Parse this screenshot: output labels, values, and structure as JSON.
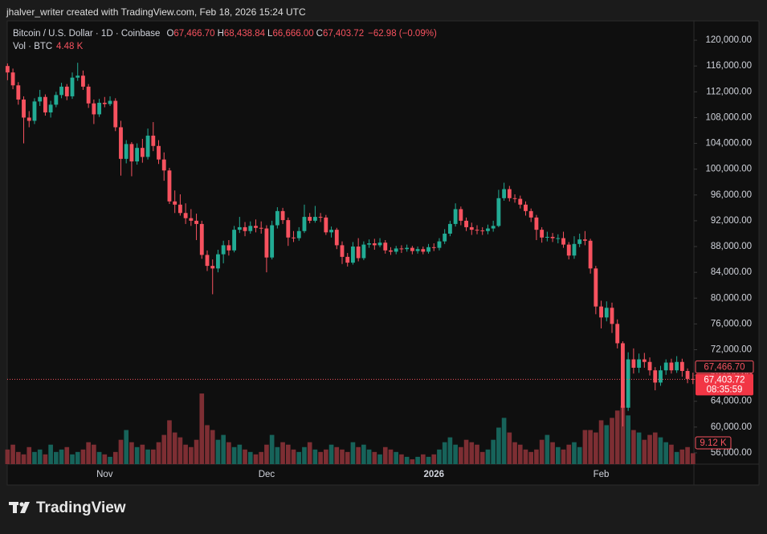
{
  "header": {
    "credit": "jhalver_writer created with TradingView.com, Feb 18, 2026 15:24 UTC",
    "symbol": "Bitcoin / U.S. Dollar · 1D · Coinbase",
    "ohlc": [
      {
        "key": "O",
        "value": "67,466.70"
      },
      {
        "key": "H",
        "value": "68,438.84"
      },
      {
        "key": "L",
        "value": "66,666.00"
      },
      {
        "key": "C",
        "value": "67,403.72"
      }
    ],
    "change": "−62.98 (−0.09%)",
    "vol_title": "Vol · BTC",
    "vol_value": "4.48 K"
  },
  "chart_data": {
    "type": "candlestick",
    "categories": [
      null,
      null,
      null,
      null,
      null,
      null,
      null,
      null,
      null,
      null,
      null,
      null,
      null,
      null,
      null,
      null,
      null,
      null,
      "Nov",
      null,
      null,
      null,
      null,
      null,
      null,
      null,
      null,
      null,
      null,
      null,
      null,
      null,
      null,
      null,
      null,
      null,
      null,
      null,
      null,
      null,
      null,
      null,
      null,
      null,
      null,
      null,
      null,
      null,
      "Dec",
      null,
      null,
      null,
      null,
      null,
      null,
      null,
      null,
      null,
      null,
      null,
      null,
      null,
      null,
      null,
      null,
      null,
      null,
      null,
      null,
      null,
      null,
      null,
      null,
      null,
      null,
      null,
      null,
      null,
      null,
      "2026",
      null,
      null,
      null,
      null,
      null,
      null,
      null,
      null,
      null,
      null,
      null,
      null,
      null,
      null,
      null,
      null,
      null,
      null,
      null,
      null,
      null,
      null,
      null,
      null,
      null,
      null,
      null,
      null,
      null,
      null,
      "Feb",
      null,
      null,
      null,
      null,
      null,
      null,
      null,
      null,
      null,
      null,
      null,
      null,
      null,
      null,
      null,
      null,
      null
    ],
    "open": [
      116000,
      115000,
      113000,
      110800,
      108000,
      107500,
      110500,
      111200,
      108800,
      110000,
      111500,
      112800,
      111300,
      114200,
      114500,
      112800,
      110200,
      108500,
      110300,
      110100,
      110600,
      106500,
      101600,
      103900,
      101200,
      103300,
      101900,
      105200,
      103600,
      101500,
      99800,
      95000,
      94500,
      93200,
      92400,
      92000,
      91500,
      86700,
      85000,
      84600,
      86800,
      88200,
      87400,
      90600,
      91000,
      90400,
      91200,
      90900,
      90800,
      86300,
      91300,
      93500,
      92100,
      89400,
      89300,
      90400,
      92600,
      92000,
      92600,
      92500,
      90200,
      90600,
      88200,
      86400,
      85500,
      88000,
      86200,
      88300,
      88500,
      88200,
      88600,
      87400,
      87200,
      87700,
      87600,
      87800,
      87300,
      87600,
      87200,
      87900,
      87800,
      88800,
      90000,
      91500,
      93800,
      92000,
      91000,
      90600,
      90500,
      90400,
      90800,
      91200,
      95500,
      96900,
      95500,
      95400,
      94500,
      93500,
      92500,
      90600,
      89400,
      89500,
      89300,
      89300,
      88300,
      86600,
      88400,
      89100,
      88900,
      84600,
      78700,
      77000,
      78500,
      76000,
      73000,
      63000,
      70500,
      69200,
      70500,
      70100,
      68800,
      66900,
      68800,
      70000,
      68800,
      70100,
      68700,
      67466.7
    ],
    "high": [
      116400,
      115600,
      113500,
      111300,
      109000,
      111000,
      112300,
      111600,
      110600,
      112000,
      113400,
      113200,
      115000,
      116500,
      115300,
      113200,
      110800,
      110900,
      111200,
      111300,
      111000,
      107500,
      104500,
      104200,
      104000,
      104700,
      106300,
      107300,
      104500,
      102600,
      100200,
      96700,
      96100,
      94700,
      93800,
      93100,
      92000,
      87400,
      86000,
      87500,
      88900,
      89000,
      91200,
      92600,
      91800,
      91900,
      92200,
      91900,
      91300,
      92000,
      94100,
      94000,
      92500,
      90400,
      91000,
      94500,
      93200,
      94300,
      93200,
      92900,
      91100,
      90900,
      88800,
      87000,
      88700,
      89300,
      88800,
      89100,
      89200,
      89300,
      89000,
      87900,
      88100,
      88200,
      88300,
      88100,
      88000,
      88000,
      88400,
      88500,
      89300,
      90700,
      92000,
      94700,
      94200,
      92500,
      91700,
      91300,
      91000,
      91400,
      92000,
      96800,
      97900,
      97400,
      96100,
      95900,
      95000,
      93900,
      92900,
      91000,
      90300,
      90100,
      89900,
      90300,
      88700,
      89600,
      90000,
      90400,
      89200,
      85000,
      79600,
      79500,
      79300,
      76700,
      73300,
      71600,
      72200,
      71400,
      71500,
      70800,
      69300,
      69500,
      70500,
      70600,
      71000,
      70600,
      69100,
      68438.84
    ],
    "low": [
      113800,
      112400,
      110000,
      104000,
      106500,
      107000,
      109800,
      108300,
      108000,
      109600,
      111000,
      110700,
      110900,
      113700,
      112300,
      109500,
      107000,
      108100,
      109600,
      109800,
      105900,
      99000,
      100900,
      98900,
      100700,
      101000,
      101500,
      102800,
      100800,
      98200,
      94600,
      93200,
      92800,
      91500,
      91200,
      89000,
      86100,
      84200,
      80600,
      84000,
      85400,
      86600,
      87100,
      90100,
      89600,
      90000,
      90200,
      90000,
      84000,
      86000,
      90800,
      91500,
      88100,
      88700,
      88900,
      90100,
      91600,
      91700,
      91800,
      89800,
      89400,
      87600,
      85300,
      84900,
      85200,
      85700,
      85900,
      87800,
      87500,
      87900,
      86900,
      86700,
      86800,
      87000,
      87200,
      86800,
      86900,
      86800,
      86900,
      87300,
      87400,
      88400,
      89600,
      91100,
      91300,
      90400,
      89800,
      89900,
      89800,
      89900,
      90300,
      91000,
      95100,
      95000,
      94800,
      93900,
      92800,
      91800,
      89000,
      88600,
      88800,
      88700,
      88500,
      87800,
      86000,
      86100,
      87900,
      88200,
      83800,
      77500,
      75300,
      76400,
      74600,
      72200,
      60100,
      62500,
      68300,
      68400,
      69200,
      68000,
      65700,
      66400,
      68100,
      68300,
      68400,
      67800,
      66800,
      66666
    ],
    "close": [
      115000,
      113000,
      110800,
      108000,
      107500,
      110500,
      111200,
      108800,
      110000,
      111500,
      112800,
      111300,
      114200,
      114500,
      112800,
      110200,
      108500,
      110300,
      110100,
      110600,
      106500,
      101600,
      103900,
      101200,
      103300,
      101900,
      105200,
      103600,
      101500,
      99800,
      95000,
      94500,
      93200,
      92400,
      92000,
      91500,
      86700,
      85000,
      84600,
      86800,
      88200,
      87400,
      90600,
      91000,
      90400,
      91200,
      90900,
      90800,
      86300,
      91300,
      93500,
      92100,
      89400,
      89300,
      90400,
      92600,
      92000,
      92600,
      92500,
      90200,
      90600,
      88200,
      86400,
      85500,
      88000,
      86200,
      88300,
      88500,
      88200,
      88600,
      87400,
      87200,
      87700,
      87600,
      87800,
      87300,
      87600,
      87200,
      87900,
      87800,
      88800,
      90000,
      91500,
      93800,
      92000,
      91000,
      90600,
      90500,
      90400,
      90800,
      91200,
      95500,
      96900,
      95500,
      95400,
      94500,
      93500,
      92500,
      90600,
      89400,
      89500,
      89300,
      89300,
      88300,
      86600,
      88400,
      89100,
      88900,
      84600,
      78700,
      77000,
      78500,
      76000,
      73000,
      63000,
      70500,
      69200,
      70500,
      70100,
      68800,
      66900,
      68800,
      70000,
      68800,
      70100,
      68700,
      67466.7,
      67403.72
    ],
    "volume": [
      6,
      8,
      5,
      4,
      7,
      5,
      6,
      4,
      8,
      5,
      6,
      7,
      4,
      5,
      6,
      9,
      8,
      5,
      4,
      3,
      5,
      10,
      14,
      9,
      7,
      8,
      6,
      6,
      9,
      12,
      18,
      13,
      11,
      8,
      7,
      10,
      29,
      16,
      14,
      10,
      12,
      9,
      7,
      8,
      6,
      5,
      4,
      5,
      8,
      12,
      7,
      9,
      8,
      6,
      5,
      7,
      9,
      6,
      5,
      6,
      8,
      7,
      6,
      5,
      9,
      7,
      8,
      6,
      5,
      4,
      7,
      6,
      5,
      4,
      3,
      2,
      3,
      4,
      3,
      4,
      6,
      9,
      11,
      8,
      7,
      10,
      9,
      8,
      5,
      6,
      10,
      15,
      19,
      13,
      9,
      8,
      6,
      5,
      6,
      10,
      12,
      9,
      7,
      6,
      8,
      9,
      7,
      14,
      14,
      13,
      18,
      16,
      19,
      22,
      24,
      20,
      14,
      13,
      10,
      12,
      13,
      11,
      9,
      8,
      5,
      6,
      7,
      4.48
    ],
    "up_color": "#22ab94",
    "down_color": "#f7525f",
    "vol_up_color": "#17635a",
    "vol_down_color": "#7d2e33",
    "ylim": [
      54250,
      123000
    ],
    "yticks": [
      {
        "value": 56000,
        "label": "56,000.00"
      },
      {
        "value": 60000,
        "label": "60,000.00"
      },
      {
        "value": 64000,
        "label": "64,000.00"
      },
      {
        "value": 68000,
        "label": "68,000.00"
      },
      {
        "value": 72000,
        "label": "72,000.00"
      },
      {
        "value": 76000,
        "label": "76,000.00"
      },
      {
        "value": 80000,
        "label": "80,000.00"
      },
      {
        "value": 84000,
        "label": "84,000.00"
      },
      {
        "value": 88000,
        "label": "88,000.00"
      },
      {
        "value": 92000,
        "label": "92,000.00"
      },
      {
        "value": 96000,
        "label": "96,000.00"
      },
      {
        "value": 100000,
        "label": "100,000.00"
      },
      {
        "value": 104000,
        "label": "104,000.00"
      },
      {
        "value": 108000,
        "label": "108,000.00"
      },
      {
        "value": 112000,
        "label": "112,000.00"
      },
      {
        "value": 116000,
        "label": "116,000.00"
      },
      {
        "value": 120000,
        "label": "120,000.00"
      }
    ],
    "vlim": [
      0,
      30
    ],
    "last_price_line": true
  },
  "price_labels": {
    "prev": "67,466.70",
    "last": "67,403.72",
    "countdown": "08:35:59",
    "volume": "9.12 K"
  },
  "footer": {
    "logo": "TradingView"
  }
}
